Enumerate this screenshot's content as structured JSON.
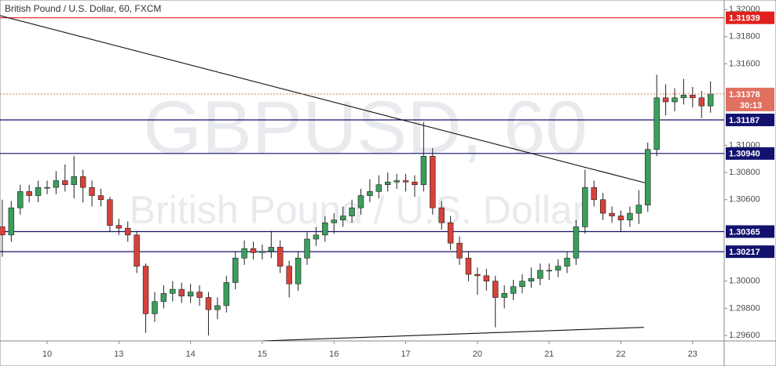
{
  "chart_data": {
    "type": "candlestick",
    "title": "British Pound / U.S. Dollar, 60, FXCM",
    "watermark": "GBPUSD, 60",
    "watermark_subtitle": "British Pound / U.S. Dollar",
    "up_color": "#3a9e5c",
    "down_color": "#d6423a",
    "wick_color": "#222222",
    "xlim": [
      -0.657,
      9.44
    ],
    "ylim": [
      1.2956,
      1.3207
    ],
    "xticks": [
      {
        "value": 0,
        "label": "10"
      },
      {
        "value": 1,
        "label": "13"
      },
      {
        "value": 2,
        "label": "14"
      },
      {
        "value": 3,
        "label": "15"
      },
      {
        "value": 4,
        "label": "16"
      },
      {
        "value": 5,
        "label": "17"
      },
      {
        "value": 6,
        "label": "20"
      },
      {
        "value": 7,
        "label": "21"
      },
      {
        "value": 8,
        "label": "22"
      },
      {
        "value": 9,
        "label": "23"
      }
    ],
    "yticks": [
      {
        "value": 1.296,
        "label": "1.29600"
      },
      {
        "value": 1.298,
        "label": "1.29800"
      },
      {
        "value": 1.3,
        "label": "1.30000"
      },
      {
        "value": 1.306,
        "label": "1.30600"
      },
      {
        "value": 1.308,
        "label": "1.30800"
      },
      {
        "value": 1.31,
        "label": "1.31000"
      },
      {
        "value": 1.316,
        "label": "1.31600"
      },
      {
        "value": 1.318,
        "label": "1.31800"
      },
      {
        "value": 1.32,
        "label": "1.32000"
      }
    ],
    "x": [
      -0.625,
      -0.5,
      -0.375,
      -0.25,
      -0.125,
      0,
      0.125,
      0.25,
      0.375,
      0.5,
      0.625,
      0.75,
      0.875,
      1,
      1.125,
      1.25,
      1.375,
      1.5,
      1.625,
      1.75,
      1.875,
      2,
      2.125,
      2.25,
      2.375,
      2.5,
      2.625,
      2.75,
      2.875,
      3,
      3.125,
      3.25,
      3.375,
      3.5,
      3.625,
      3.75,
      3.875,
      4,
      4.125,
      4.25,
      4.375,
      4.5,
      4.625,
      4.75,
      4.875,
      5,
      5.125,
      5.25,
      5.375,
      5.5,
      5.625,
      5.75,
      5.875,
      6,
      6.125,
      6.25,
      6.375,
      6.5,
      6.625,
      6.75,
      6.875,
      7,
      7.125,
      7.25,
      7.375,
      7.5,
      7.625,
      7.75,
      7.875,
      8,
      8.125,
      8.25,
      8.375,
      8.5,
      8.625,
      8.75,
      8.875,
      9,
      9.125,
      9.25
    ],
    "open": [
      1.304,
      1.3034,
      1.3054,
      1.3066,
      1.3063,
      1.3069,
      1.3069,
      1.3074,
      1.3071,
      1.3077,
      1.3069,
      1.3063,
      1.306,
      1.3041,
      1.3039,
      1.3034,
      1.3011,
      1.2976,
      1.2985,
      1.2991,
      1.2994,
      1.2989,
      1.2992,
      1.2988,
      1.2979,
      1.2982,
      1.2999,
      1.3017,
      1.3024,
      1.3021,
      1.3022,
      1.3025,
      1.3011,
      1.2998,
      1.3017,
      1.3031,
      1.3034,
      1.3043,
      1.3045,
      1.3048,
      1.3054,
      1.3063,
      1.3066,
      1.3071,
      1.3073,
      1.3074,
      1.3073,
      1.3071,
      1.3092,
      1.3054,
      1.3043,
      1.3028,
      1.3017,
      1.3005,
      1.3004,
      1.3,
      1.2988,
      1.2991,
      1.2996,
      1.3,
      1.3002,
      1.3008,
      1.3008,
      1.3011,
      1.3017,
      1.304,
      1.3069,
      1.306,
      1.305,
      1.3048,
      1.3045,
      1.305,
      1.3056,
      1.3097,
      1.3135,
      1.3132,
      1.3135,
      1.3137,
      1.3135,
      1.3129
    ],
    "high": [
      1.306,
      1.3059,
      1.3071,
      1.3071,
      1.3074,
      1.3074,
      1.3081,
      1.3086,
      1.3092,
      1.3082,
      1.3074,
      1.3068,
      1.3062,
      1.3046,
      1.3044,
      1.3037,
      1.3013,
      1.2992,
      1.2997,
      1.3,
      1.2999,
      1.2998,
      1.2997,
      1.2992,
      1.2988,
      1.3004,
      1.3022,
      1.303,
      1.3029,
      1.3027,
      1.3037,
      1.303,
      1.3015,
      1.3022,
      1.3036,
      1.304,
      1.3048,
      1.305,
      1.3055,
      1.306,
      1.3068,
      1.3075,
      1.3078,
      1.308,
      1.3079,
      1.3079,
      1.3078,
      1.3117,
      1.3098,
      1.3059,
      1.3048,
      1.3033,
      1.3022,
      1.301,
      1.3009,
      1.3004,
      1.2997,
      1.3001,
      1.3005,
      1.301,
      1.3013,
      1.3013,
      1.3016,
      1.3022,
      1.3045,
      1.3082,
      1.3074,
      1.3065,
      1.3055,
      1.3052,
      1.3055,
      1.3067,
      1.3102,
      1.3152,
      1.3145,
      1.3142,
      1.3149,
      1.3143,
      1.314,
      1.3147
    ],
    "low": [
      1.3018,
      1.3029,
      1.3049,
      1.3058,
      1.3058,
      1.3064,
      1.3064,
      1.3066,
      1.3061,
      1.3058,
      1.3055,
      1.3055,
      1.3036,
      1.3034,
      1.3029,
      1.3006,
      1.2962,
      1.297,
      1.298,
      1.2985,
      1.2984,
      1.2984,
      1.2982,
      1.296,
      1.2972,
      1.2977,
      1.2994,
      1.3012,
      1.3016,
      1.3016,
      1.3017,
      1.3006,
      1.2988,
      1.2993,
      1.3012,
      1.3026,
      1.3029,
      1.3035,
      1.304,
      1.3043,
      1.3049,
      1.3058,
      1.3061,
      1.3066,
      1.3068,
      1.3066,
      1.3062,
      1.3066,
      1.3049,
      1.3038,
      1.3023,
      1.3012,
      1.3,
      1.299,
      1.2993,
      1.2966,
      1.298,
      1.2986,
      1.2991,
      1.2995,
      1.2997,
      1.3001,
      1.3003,
      1.3006,
      1.3012,
      1.3035,
      1.3055,
      1.3045,
      1.3043,
      1.3036,
      1.304,
      1.3042,
      1.3051,
      1.3092,
      1.3122,
      1.3125,
      1.313,
      1.3128,
      1.312,
      1.3124
    ],
    "close": [
      1.3034,
      1.3054,
      1.3066,
      1.3063,
      1.3069,
      1.3069,
      1.3074,
      1.3071,
      1.3077,
      1.3069,
      1.3063,
      1.306,
      1.3041,
      1.3039,
      1.3034,
      1.3011,
      1.2976,
      1.2985,
      1.2991,
      1.2994,
      1.2989,
      1.2992,
      1.2988,
      1.2979,
      1.2982,
      1.2999,
      1.3017,
      1.3024,
      1.3021,
      1.3022,
      1.3025,
      1.3011,
      1.2998,
      1.3017,
      1.3031,
      1.3034,
      1.3043,
      1.3045,
      1.3048,
      1.3054,
      1.3063,
      1.3066,
      1.3071,
      1.3073,
      1.3074,
      1.3073,
      1.3071,
      1.3092,
      1.3054,
      1.3043,
      1.3028,
      1.3017,
      1.3005,
      1.3004,
      1.3,
      1.2988,
      1.2991,
      1.2996,
      1.3,
      1.3002,
      1.3008,
      1.3008,
      1.3011,
      1.3017,
      1.304,
      1.3069,
      1.306,
      1.305,
      1.3048,
      1.3045,
      1.305,
      1.3056,
      1.3097,
      1.3135,
      1.3132,
      1.3135,
      1.3137,
      1.3135,
      1.3129,
      1.31378
    ],
    "levels": [
      {
        "value": 1.31939,
        "label": "1.31939",
        "color": "#e0201c"
      },
      {
        "value": 1.31187,
        "label": "1.31187",
        "color": "#12126e"
      },
      {
        "value": 1.3094,
        "label": "1.30940",
        "color": "#12126e"
      },
      {
        "value": 1.30365,
        "label": "1.30365",
        "color": "#12126e"
      },
      {
        "value": 1.30217,
        "label": "1.30217",
        "color": "#12126e"
      }
    ],
    "last_price": {
      "value": 1.31378,
      "label": "1.31378",
      "color": "#e07060"
    },
    "countdown": "30:13",
    "trendlines": [
      {
        "x": [
          -0.657,
          8.41
        ],
        "y": [
          1.31955,
          1.30714
        ]
      },
      {
        "x": [
          3.01,
          8.32
        ],
        "y": [
          1.2956,
          1.2966
        ]
      }
    ]
  }
}
